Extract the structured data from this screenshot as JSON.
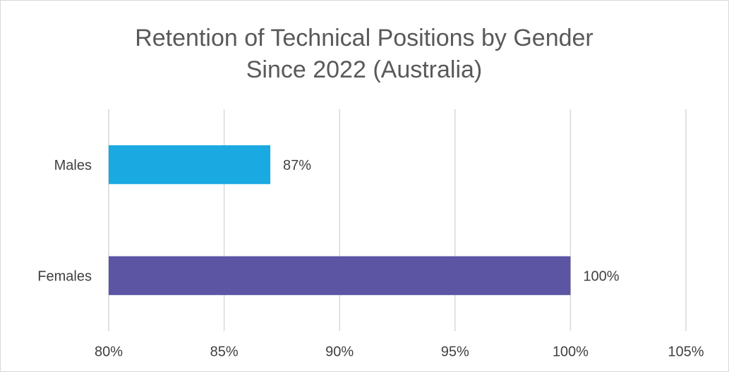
{
  "chart_data": {
    "type": "hbar",
    "title": [
      "Retention of Technical Positions by Gender",
      "Since 2022 (Australia)"
    ],
    "categories": [
      "Males",
      "Females"
    ],
    "values": [
      87,
      100
    ],
    "value_labels": [
      "87%",
      "100%"
    ],
    "colors": [
      "#1aa9e1",
      "#5b55a4"
    ],
    "xlim": [
      80,
      105
    ],
    "xticks": [
      {
        "value": 80,
        "label": "80%"
      },
      {
        "value": 85,
        "label": "85%"
      },
      {
        "value": 90,
        "label": "90%"
      },
      {
        "value": 95,
        "label": "95%"
      },
      {
        "value": 100,
        "label": "100%"
      },
      {
        "value": 105,
        "label": "105%"
      }
    ],
    "grid": true
  }
}
